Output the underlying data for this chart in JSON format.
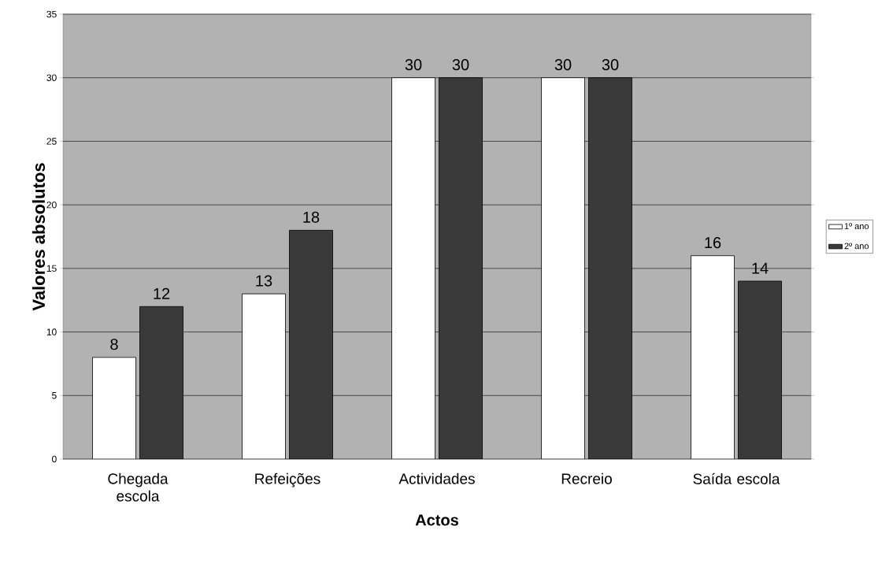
{
  "chart_data": {
    "type": "bar",
    "xlabel": "Actos",
    "ylabel": "Valores absolutos",
    "categories": [
      "Chegada escola",
      "Refeições",
      "Actividades",
      "Recreio",
      "Saída escola"
    ],
    "series": [
      {
        "name": "1º ano",
        "color": "#ffffff",
        "values": [
          8,
          13,
          30,
          30,
          16
        ]
      },
      {
        "name": "2º ano",
        "color": "#3a3a3a",
        "values": [
          12,
          18,
          30,
          30,
          14
        ]
      }
    ],
    "ylim": [
      0,
      35
    ],
    "yticks": [
      0,
      5,
      10,
      15,
      20,
      25,
      30,
      35
    ],
    "grid": "y",
    "legend": "right",
    "data_labels": true
  }
}
